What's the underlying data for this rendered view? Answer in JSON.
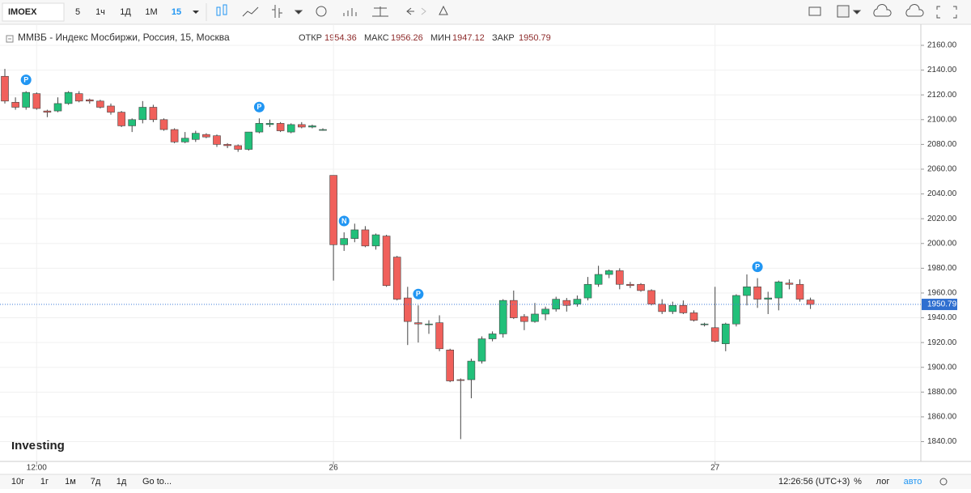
{
  "toolbar": {
    "symbol": "IMOEX",
    "intervals": [
      "5",
      "1ч",
      "1Д",
      "1М"
    ],
    "active_interval": "15"
  },
  "chart_data": {
    "type": "candlestick",
    "title": "ММВБ - Индекс Мосбиржи, Россия, 15, Москва",
    "ohlc_labels": {
      "open": "ОТКР",
      "high": "МАКС",
      "low": "МИН",
      "close": "ЗАКР"
    },
    "up_color": "#22c07a",
    "down_color": "#f0605b",
    "categories": [
      null,
      null,
      null,
      "12:00",
      null,
      null,
      null,
      null,
      null,
      null,
      null,
      null,
      null,
      null,
      null,
      null,
      null,
      null,
      null,
      null,
      null,
      null,
      null,
      null,
      null,
      null,
      null,
      null,
      null,
      null,
      null,
      "26",
      null,
      null,
      null,
      null,
      null,
      null,
      null,
      null,
      null,
      null,
      null,
      null,
      null,
      null,
      null,
      null,
      null,
      null,
      null,
      null,
      null,
      null,
      null,
      null,
      null,
      null,
      null,
      null,
      null,
      null,
      null,
      null,
      null,
      null,
      null,
      "27",
      null,
      null,
      null,
      null,
      null,
      null,
      null,
      null,
      null
    ],
    "open": [
      2135,
      2114,
      2110,
      2121,
      2107,
      2107,
      2113,
      2121,
      2116,
      2115,
      2111,
      2106,
      2095,
      2100,
      2110,
      2100,
      2092,
      2082,
      2084,
      2088,
      2087,
      2080,
      2079,
      2076,
      2090,
      2096,
      2097,
      2090,
      2096,
      2094,
      2092,
      2055,
      1999,
      2004,
      2011,
      1998,
      2006,
      1989,
      1956,
      1936,
      1935,
      1936,
      1914,
      1890,
      1890,
      1905,
      1923,
      1927,
      1954,
      1941,
      1937,
      1943,
      1947,
      1954,
      1951,
      1956,
      1967,
      1975,
      1978,
      1967,
      1967,
      1962,
      1951,
      1945,
      1950,
      1944,
      1935,
      1932,
      1919,
      1935,
      1958,
      1965,
      1955,
      1956,
      1968,
      1967,
      1954.36
    ],
    "high": [
      2141,
      2118,
      2123,
      2122,
      2108,
      2118,
      2123,
      2123,
      2117,
      2116,
      2113,
      2107,
      2101,
      2115,
      2112,
      2101,
      2093,
      2090,
      2091,
      2089,
      2088,
      2081,
      2080,
      2090,
      2101,
      2100,
      2098,
      2097,
      2098,
      2096,
      2093,
      2055,
      2009,
      2016,
      2014,
      2008,
      2007,
      1990,
      1965,
      1950,
      1938,
      1942,
      1915,
      1891,
      1907,
      1925,
      1929,
      1955,
      1962,
      1943,
      1952,
      1949,
      1957,
      1956,
      1958,
      1973,
      1982,
      1979,
      1980,
      1969,
      1968,
      1963,
      1955,
      1953,
      1954,
      1946,
      1936,
      1965,
      1936,
      1959,
      1975,
      1972,
      1961,
      1970,
      1971,
      1971,
      1956.26
    ],
    "low": [
      2113,
      2108,
      2108,
      2108,
      2102,
      2106,
      2112,
      2114,
      2113,
      2109,
      2104,
      2094,
      2090,
      2097,
      2098,
      2091,
      2081,
      2081,
      2082,
      2085,
      2078,
      2077,
      2074,
      2075,
      2089,
      2094,
      2090,
      2089,
      2093,
      2093,
      2091,
      1970,
      1994,
      2001,
      1997,
      1995,
      1965,
      1954,
      1918,
      1920,
      1927,
      1913,
      1888,
      1842,
      1875,
      1903,
      1921,
      1924,
      1939,
      1930,
      1936,
      1938,
      1945,
      1945,
      1949,
      1954,
      1965,
      1972,
      1963,
      1964,
      1961,
      1950,
      1943,
      1943,
      1943,
      1937,
      1933,
      1920,
      1913,
      1933,
      1950,
      1948,
      1943,
      1946,
      1963,
      1953,
      1947.12
    ],
    "close": [
      2115,
      2110,
      2122,
      2109,
      2106,
      2113,
      2122,
      2115,
      2115,
      2110,
      2106,
      2095,
      2100,
      2110,
      2100,
      2092,
      2082,
      2085,
      2089,
      2086,
      2080,
      2079,
      2076,
      2090,
      2097,
      2097,
      2091,
      2096,
      2094,
      2095,
      2092,
      1999,
      2004,
      2011,
      1998,
      2007,
      1966,
      1955,
      1937,
      1935,
      1935,
      1915,
      1889,
      1889.5,
      1905,
      1923,
      1927,
      1954,
      1940,
      1937,
      1943,
      1947,
      1955,
      1950,
      1955,
      1967,
      1975,
      1978,
      1967,
      1966,
      1962,
      1951,
      1945,
      1950,
      1944,
      1938,
      1935,
      1921,
      1935,
      1958,
      1965,
      1955,
      1956,
      1969,
      1967,
      1955,
      1950.79
    ],
    "annotations": [
      {
        "text": "P",
        "index": 2
      },
      {
        "text": "P",
        "index": 24
      },
      {
        "text": "N",
        "index": 32
      },
      {
        "text": "P",
        "index": 39
      },
      {
        "text": "P",
        "index": 71
      }
    ],
    "ylim": [
      1824,
      2177
    ],
    "yticks": [
      {
        "value": 1840,
        "label": "1840.00"
      },
      {
        "value": 1860,
        "label": "1860.00"
      },
      {
        "value": 1880,
        "label": "1880.00"
      },
      {
        "value": 1900,
        "label": "1900.00"
      },
      {
        "value": 1920,
        "label": "1920.00"
      },
      {
        "value": 1940,
        "label": "1940.00"
      },
      {
        "value": 1960,
        "label": "1960.00"
      },
      {
        "value": 1980,
        "label": "1980.00"
      },
      {
        "value": 2000,
        "label": "2000.00"
      },
      {
        "value": 2020,
        "label": "2020.00"
      },
      {
        "value": 2040,
        "label": "2040.00"
      },
      {
        "value": 2060,
        "label": "2060.00"
      },
      {
        "value": 2080,
        "label": "2080.00"
      },
      {
        "value": 2100,
        "label": "2100.00"
      },
      {
        "value": 2120,
        "label": "2120.00"
      },
      {
        "value": 2140,
        "label": "2140.00"
      },
      {
        "value": 2160,
        "label": "2160.00"
      }
    ],
    "grid": true,
    "watermark": "Investing",
    ".com": null
  },
  "bottombar": {
    "ranges": [
      "10г",
      "1г",
      "1м",
      "7д",
      "1д"
    ],
    "goto": "Go to...",
    "clock": "12:26:56 (UTC+3)",
    "percent": "%",
    "log": "лог",
    "auto": "авто"
  }
}
